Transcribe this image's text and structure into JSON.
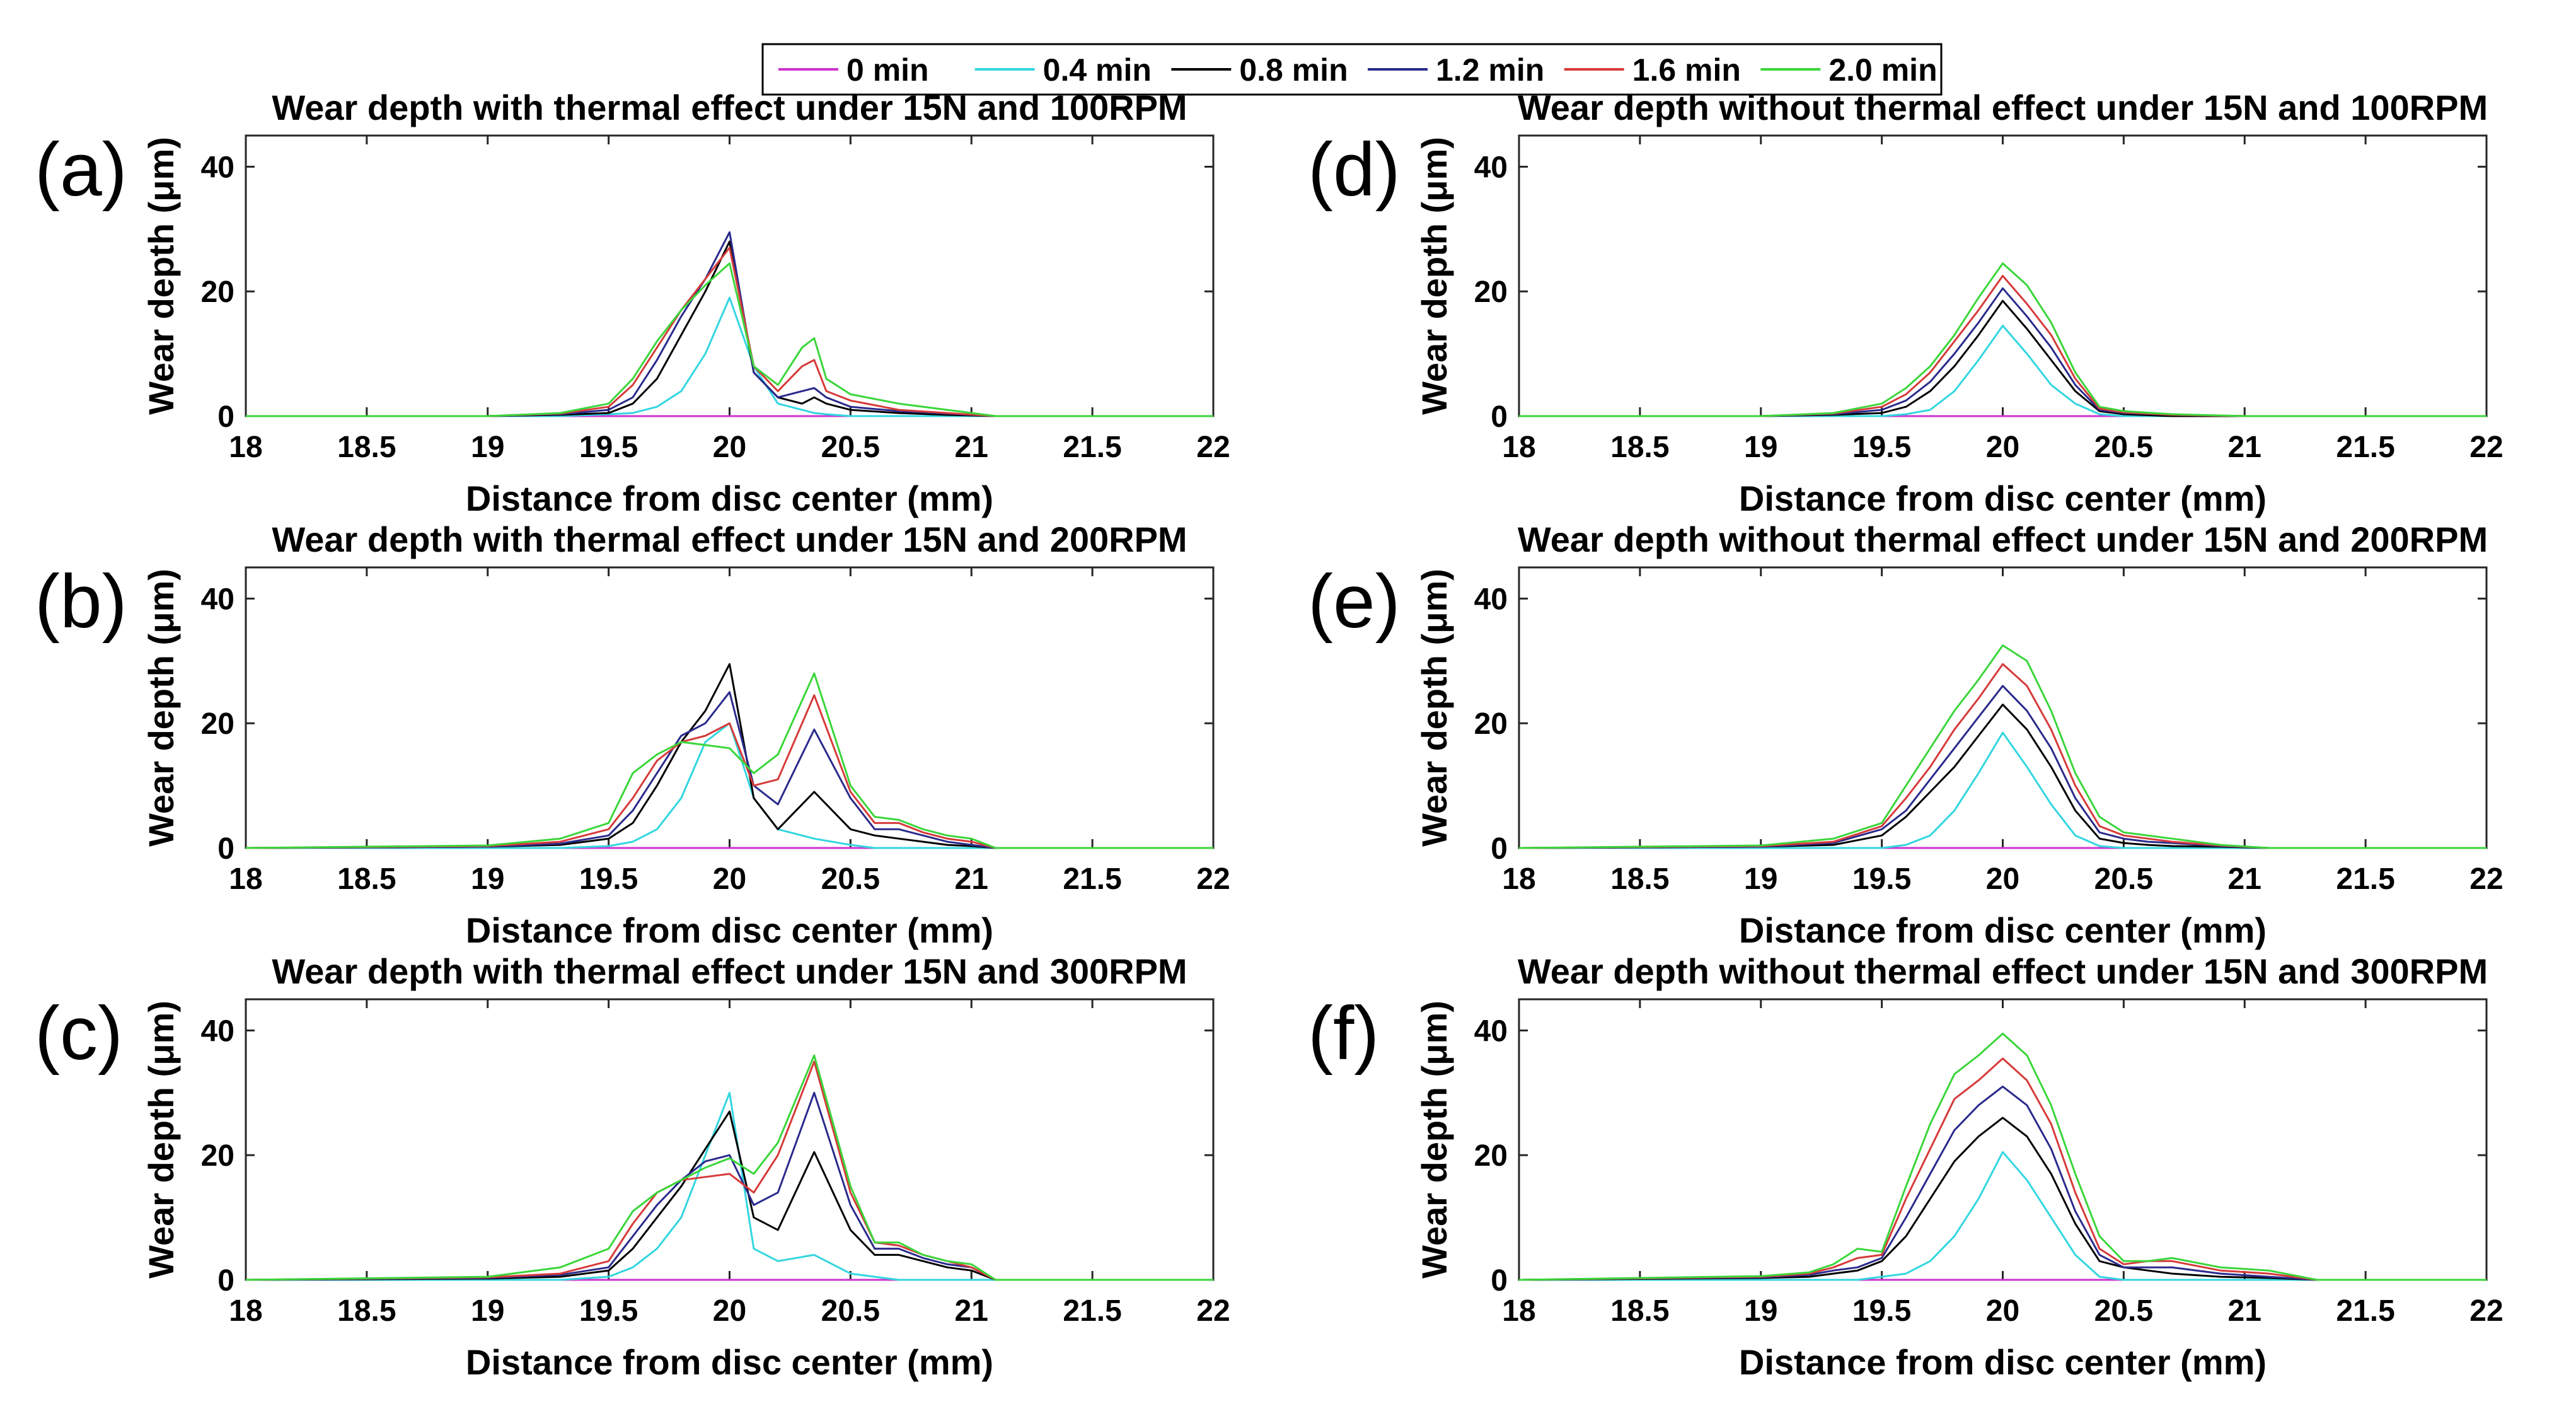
{
  "legend": {
    "entries": [
      {
        "label": "0 min",
        "color": "#cc33cc"
      },
      {
        "label": "0.4 min",
        "color": "#33d6e0"
      },
      {
        "label": "0.8 min",
        "color": "#000000"
      },
      {
        "label": "1.2 min",
        "color": "#2a2a8c"
      },
      {
        "label": "1.6 min",
        "color": "#d63a3a"
      },
      {
        "label": "2.0 min",
        "color": "#3ad63a"
      }
    ]
  },
  "chart_data": [
    {
      "type": "line",
      "panel": "(a)",
      "title": "Wear depth with thermal effect under 15N and 100RPM",
      "xlabel": "Distance from disc center (mm)",
      "ylabel": "Wear depth (μm)",
      "xlim": [
        18,
        22
      ],
      "ylim": [
        0,
        45
      ],
      "xticks": [
        "18",
        "18.5",
        "19",
        "19.5",
        "20",
        "20.5",
        "21",
        "21.5",
        "22"
      ],
      "yticks": [
        "0",
        "20",
        "40"
      ],
      "x": [
        18.0,
        19.0,
        19.3,
        19.5,
        19.6,
        19.7,
        19.8,
        19.9,
        20.0,
        20.1,
        20.2,
        20.3,
        20.35,
        20.4,
        20.5,
        20.7,
        20.9,
        21.1,
        21.5,
        22.0
      ],
      "series": [
        {
          "name": "0 min",
          "values": [
            0,
            0,
            0,
            0,
            0,
            0,
            0,
            0,
            0,
            0,
            0,
            0,
            0,
            0,
            0,
            0,
            0,
            0,
            0,
            0
          ]
        },
        {
          "name": "0.4 min",
          "values": [
            0,
            0,
            0,
            0.3,
            0.5,
            1.5,
            4,
            10,
            19,
            8,
            2,
            1,
            0.5,
            0.3,
            0,
            0,
            0,
            0,
            0,
            0
          ]
        },
        {
          "name": "0.8 min",
          "values": [
            0,
            0,
            0.2,
            0.5,
            2,
            6,
            13,
            20,
            28,
            7,
            3,
            2,
            3,
            2,
            1,
            0.5,
            0.2,
            0,
            0,
            0
          ]
        },
        {
          "name": "1.2 min",
          "values": [
            0,
            0,
            0.3,
            1,
            3,
            9,
            16,
            22,
            29.5,
            7,
            3,
            4,
            4.5,
            3,
            1.5,
            0.8,
            0.4,
            0,
            0,
            0
          ]
        },
        {
          "name": "1.6 min",
          "values": [
            0,
            0,
            0.4,
            1.5,
            5,
            11,
            17,
            22,
            27,
            8,
            4,
            8,
            9,
            4,
            2.5,
            1,
            0.5,
            0,
            0,
            0
          ]
        },
        {
          "name": "2.0 min",
          "values": [
            0,
            0,
            0.5,
            2,
            6,
            12,
            17,
            21,
            24.5,
            8,
            5,
            11,
            12.5,
            6,
            3.5,
            2,
            1,
            0,
            0,
            0
          ]
        }
      ]
    },
    {
      "type": "line",
      "panel": "(b)",
      "title": "Wear depth with thermal effect under 15N and 200RPM",
      "xlabel": "Distance from disc center (mm)",
      "ylabel": "Wear depth (μm)",
      "xlim": [
        18,
        22
      ],
      "ylim": [
        0,
        45
      ],
      "xticks": [
        "18",
        "18.5",
        "19",
        "19.5",
        "20",
        "20.5",
        "21",
        "21.5",
        "22"
      ],
      "yticks": [
        "0",
        "20",
        "40"
      ],
      "x": [
        18.0,
        19.0,
        19.3,
        19.5,
        19.6,
        19.7,
        19.8,
        19.9,
        20.0,
        20.1,
        20.2,
        20.35,
        20.5,
        20.6,
        20.7,
        20.8,
        20.9,
        21.0,
        21.1,
        21.5,
        22.0
      ],
      "series": [
        {
          "name": "0 min",
          "values": [
            0,
            0,
            0,
            0,
            0,
            0,
            0,
            0,
            0,
            0,
            0,
            0,
            0,
            0,
            0,
            0,
            0,
            0,
            0,
            0,
            0
          ]
        },
        {
          "name": "0.4 min",
          "values": [
            0,
            0,
            0,
            0.3,
            1,
            3,
            8,
            17,
            20,
            8,
            3,
            1.5,
            0.5,
            0,
            0,
            0,
            0,
            0,
            0,
            0,
            0
          ]
        },
        {
          "name": "0.8 min",
          "values": [
            0,
            0.2,
            0.5,
            1.5,
            4,
            10,
            17,
            22,
            29.5,
            8,
            3,
            9,
            3,
            2,
            1.5,
            1,
            0.5,
            0.3,
            0,
            0,
            0
          ]
        },
        {
          "name": "1.2 min",
          "values": [
            0,
            0.2,
            0.7,
            2,
            6,
            12,
            18,
            20,
            25,
            10,
            7,
            19,
            8,
            3,
            3,
            2,
            1,
            0.5,
            0,
            0,
            0
          ]
        },
        {
          "name": "1.6 min",
          "values": [
            0,
            0.3,
            1,
            3,
            8,
            14,
            17,
            18,
            20,
            10,
            11,
            24.5,
            9,
            4,
            4,
            2.5,
            1.5,
            1,
            0,
            0,
            0
          ]
        },
        {
          "name": "2.0 min",
          "values": [
            0,
            0.4,
            1.5,
            4,
            12,
            15,
            17,
            16.5,
            16,
            12,
            15,
            28,
            10,
            5,
            4.5,
            3,
            2,
            1.5,
            0,
            0,
            0
          ]
        }
      ]
    },
    {
      "type": "line",
      "panel": "(c)",
      "title": "Wear depth with thermal effect under 15N and 300RPM",
      "xlabel": "Distance from disc center (mm)",
      "ylabel": "Wear depth (μm)",
      "xlim": [
        18,
        22
      ],
      "ylim": [
        0,
        45
      ],
      "xticks": [
        "18",
        "18.5",
        "19",
        "19.5",
        "20",
        "20.5",
        "21",
        "21.5",
        "22"
      ],
      "yticks": [
        "0",
        "20",
        "40"
      ],
      "x": [
        18.0,
        19.0,
        19.3,
        19.5,
        19.6,
        19.7,
        19.8,
        19.9,
        20.0,
        20.1,
        20.2,
        20.35,
        20.5,
        20.6,
        20.7,
        20.8,
        20.9,
        21.0,
        21.1,
        21.5,
        22.0
      ],
      "series": [
        {
          "name": "0 min",
          "values": [
            0,
            0,
            0,
            0,
            0,
            0,
            0,
            0,
            0,
            0,
            0,
            0,
            0,
            0,
            0,
            0,
            0,
            0,
            0,
            0,
            0
          ]
        },
        {
          "name": "0.4 min",
          "values": [
            0,
            0,
            0,
            0.5,
            2,
            5,
            10,
            20,
            30,
            5,
            3,
            4,
            1,
            0.5,
            0,
            0,
            0,
            0,
            0,
            0,
            0
          ]
        },
        {
          "name": "0.8 min",
          "values": [
            0,
            0.2,
            0.5,
            1.5,
            5,
            10,
            15,
            21,
            27,
            10,
            8,
            20.5,
            8,
            4,
            4,
            3,
            2,
            1.5,
            0,
            0,
            0
          ]
        },
        {
          "name": "1.2 min",
          "values": [
            0,
            0.3,
            0.8,
            2,
            7,
            12,
            16,
            19,
            20,
            12,
            14,
            30,
            12,
            5,
            5,
            3.5,
            2.5,
            2,
            0,
            0,
            0
          ]
        },
        {
          "name": "1.6 min",
          "values": [
            0,
            0.4,
            1,
            3,
            9,
            14,
            16,
            16.5,
            17,
            14,
            20,
            35,
            14,
            6,
            5.5,
            4,
            3,
            2,
            0,
            0,
            0
          ]
        },
        {
          "name": "2.0 min",
          "values": [
            0,
            0.5,
            2,
            5,
            11,
            14,
            16,
            18,
            19.5,
            17,
            22,
            36,
            15,
            6,
            6,
            4,
            3,
            2.5,
            0,
            0,
            0
          ]
        }
      ]
    },
    {
      "type": "line",
      "panel": "(d)",
      "title": "Wear depth without thermal effect under 15N and 100RPM",
      "xlabel": "Distance from disc center (mm)",
      "ylabel": "Wear depth (μm)",
      "xlim": [
        18,
        22
      ],
      "ylim": [
        0,
        45
      ],
      "xticks": [
        "18",
        "18.5",
        "19",
        "19.5",
        "20",
        "20.5",
        "21",
        "21.5",
        "22"
      ],
      "yticks": [
        "0",
        "20",
        "40"
      ],
      "x": [
        18.0,
        19.0,
        19.3,
        19.5,
        19.6,
        19.7,
        19.8,
        19.9,
        20.0,
        20.1,
        20.2,
        20.3,
        20.4,
        20.5,
        20.7,
        21.0,
        22.0
      ],
      "series": [
        {
          "name": "0 min",
          "values": [
            0,
            0,
            0,
            0,
            0,
            0,
            0,
            0,
            0,
            0,
            0,
            0,
            0,
            0,
            0,
            0,
            0
          ]
        },
        {
          "name": "0.4 min",
          "values": [
            0,
            0,
            0,
            0,
            0.3,
            1,
            4,
            9,
            14.5,
            10,
            5,
            2,
            0.3,
            0,
            0,
            0,
            0
          ]
        },
        {
          "name": "0.8 min",
          "values": [
            0,
            0,
            0.2,
            0.5,
            1.5,
            4,
            8,
            13,
            18.5,
            14,
            9,
            4,
            0.8,
            0.3,
            0,
            0,
            0
          ]
        },
        {
          "name": "1.2 min",
          "values": [
            0,
            0,
            0.3,
            1,
            2.5,
            5.5,
            10,
            15,
            20.5,
            16,
            11,
            5,
            1,
            0.5,
            0.2,
            0,
            0
          ]
        },
        {
          "name": "1.6 min",
          "values": [
            0,
            0,
            0.4,
            1.5,
            3.5,
            7,
            12,
            17,
            22.5,
            18,
            13,
            6,
            1.2,
            0.6,
            0.2,
            0,
            0
          ]
        },
        {
          "name": "2.0 min",
          "values": [
            0,
            0,
            0.5,
            2,
            4.5,
            8,
            13,
            19,
            24.5,
            21,
            15,
            7,
            1.5,
            0.8,
            0.3,
            0,
            0
          ]
        }
      ]
    },
    {
      "type": "line",
      "panel": "(e)",
      "title": "Wear depth without thermal effect under 15N and 200RPM",
      "xlabel": "Distance from disc center (mm)",
      "ylabel": "Wear depth (μm)",
      "xlim": [
        18,
        22
      ],
      "ylim": [
        0,
        45
      ],
      "xticks": [
        "18",
        "18.5",
        "19",
        "19.5",
        "20",
        "20.5",
        "21",
        "21.5",
        "22"
      ],
      "yticks": [
        "0",
        "20",
        "40"
      ],
      "x": [
        18.0,
        19.0,
        19.3,
        19.5,
        19.6,
        19.7,
        19.8,
        19.9,
        20.0,
        20.1,
        20.2,
        20.3,
        20.4,
        20.5,
        20.6,
        20.7,
        20.9,
        21.1,
        22.0
      ],
      "series": [
        {
          "name": "0 min",
          "values": [
            0,
            0,
            0,
            0,
            0,
            0,
            0,
            0,
            0,
            0,
            0,
            0,
            0,
            0,
            0,
            0,
            0,
            0,
            0
          ]
        },
        {
          "name": "0.4 min",
          "values": [
            0,
            0,
            0,
            0,
            0.5,
            2,
            6,
            12,
            18.5,
            13,
            7,
            2,
            0.3,
            0,
            0,
            0,
            0,
            0,
            0
          ]
        },
        {
          "name": "0.8 min",
          "values": [
            0,
            0.2,
            0.5,
            2,
            5,
            9,
            13,
            18,
            23,
            19,
            13,
            6,
            1.5,
            0.8,
            0.5,
            0.3,
            0.2,
            0,
            0
          ]
        },
        {
          "name": "1.2 min",
          "values": [
            0,
            0.2,
            0.8,
            3,
            6,
            11,
            16,
            21,
            26,
            22,
            16,
            8,
            2.5,
            1.5,
            1,
            0.8,
            0.3,
            0,
            0
          ]
        },
        {
          "name": "1.6 min",
          "values": [
            0,
            0.3,
            1,
            3.5,
            8,
            13,
            19,
            24,
            29.5,
            26,
            19,
            10,
            3.5,
            2,
            1.5,
            1,
            0.4,
            0,
            0
          ]
        },
        {
          "name": "2.0 min",
          "values": [
            0,
            0.4,
            1.5,
            4,
            10,
            16,
            22,
            27,
            32.5,
            30,
            22,
            12,
            5,
            2.5,
            2,
            1.5,
            0.5,
            0,
            0
          ]
        }
      ]
    },
    {
      "type": "line",
      "panel": "(f)",
      "title": "Wear depth without thermal effect under 15N and 300RPM",
      "xlabel": "Distance from disc center (mm)",
      "ylabel": "Wear depth (μm)",
      "xlim": [
        18,
        22
      ],
      "ylim": [
        0,
        45
      ],
      "xticks": [
        "18",
        "18.5",
        "19",
        "19.5",
        "20",
        "20.5",
        "21",
        "21.5",
        "22"
      ],
      "yticks": [
        "0",
        "20",
        "40"
      ],
      "x": [
        18.0,
        19.0,
        19.2,
        19.3,
        19.4,
        19.5,
        19.6,
        19.7,
        19.8,
        19.9,
        20.0,
        20.1,
        20.2,
        20.3,
        20.4,
        20.5,
        20.6,
        20.7,
        20.9,
        21.1,
        21.3,
        22.0
      ],
      "series": [
        {
          "name": "0 min",
          "values": [
            0,
            0,
            0,
            0,
            0,
            0,
            0,
            0,
            0,
            0,
            0,
            0,
            0,
            0,
            0,
            0,
            0,
            0,
            0,
            0,
            0,
            0
          ]
        },
        {
          "name": "0.4 min",
          "values": [
            0,
            0,
            0,
            0,
            0,
            0.5,
            1,
            3,
            7,
            13,
            20.5,
            16,
            10,
            4,
            0.5,
            0,
            0,
            0,
            0,
            0,
            0,
            0
          ]
        },
        {
          "name": "0.8 min",
          "values": [
            0,
            0.3,
            0.5,
            1,
            1.5,
            3,
            7,
            13,
            19,
            23,
            26,
            23,
            17,
            9,
            3,
            2,
            1.5,
            1,
            0.5,
            0.3,
            0,
            0
          ]
        },
        {
          "name": "1.2 min",
          "values": [
            0,
            0.4,
            0.8,
            1.5,
            2,
            3.5,
            10,
            17,
            24,
            28,
            31,
            28,
            21,
            11,
            4,
            2,
            2,
            2,
            1,
            0.5,
            0,
            0
          ]
        },
        {
          "name": "1.6 min",
          "values": [
            0,
            0.5,
            1,
            2,
            3.5,
            4,
            13,
            21,
            29,
            32,
            35.5,
            32,
            25,
            14,
            5,
            2.5,
            3,
            3,
            1.5,
            1,
            0,
            0
          ]
        },
        {
          "name": "2.0 min",
          "values": [
            0,
            0.6,
            1.2,
            2.5,
            5,
            4.5,
            15,
            25,
            33,
            36,
            39.5,
            36,
            28,
            17,
            7,
            3,
            3,
            3.5,
            2,
            1.5,
            0,
            0
          ]
        }
      ]
    }
  ]
}
